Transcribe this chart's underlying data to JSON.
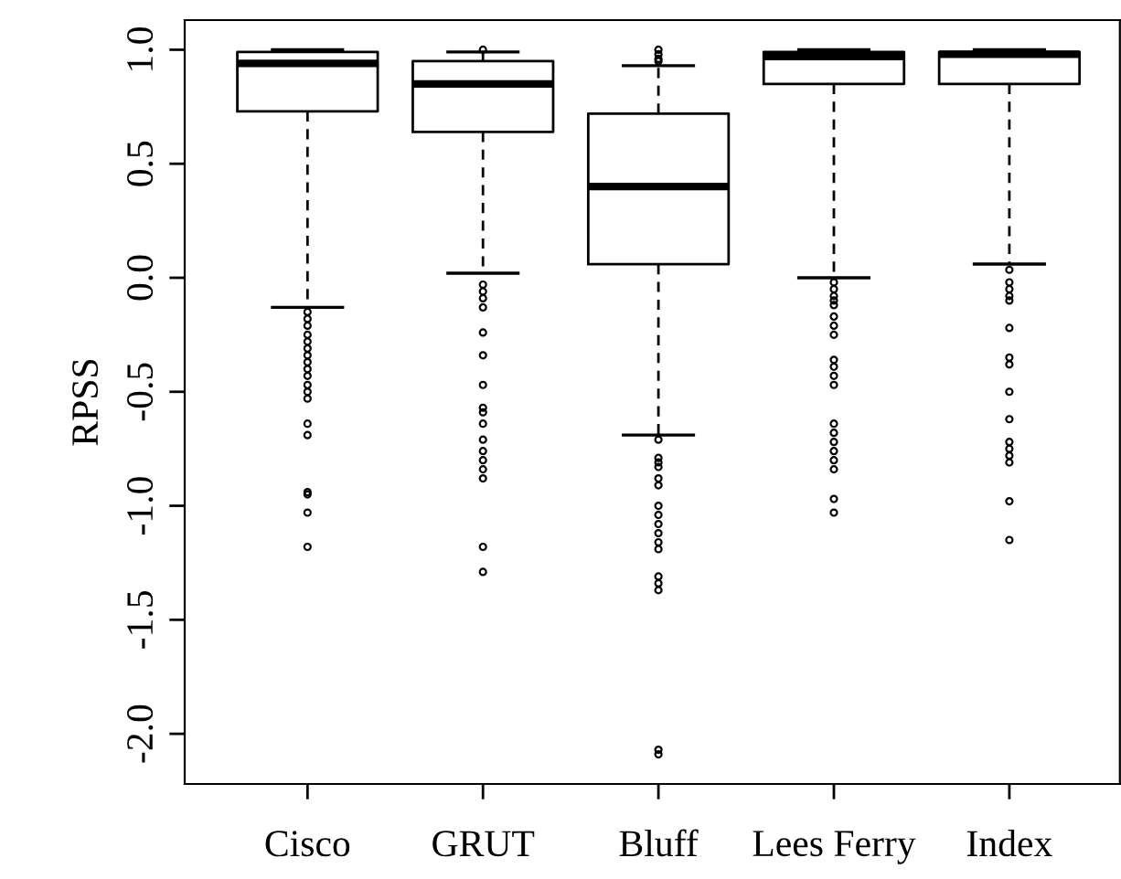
{
  "chart_data": {
    "type": "box",
    "ylabel": "RPSS",
    "categories": [
      "Cisco",
      "GRUT",
      "Bluff",
      "Lees Ferry",
      "Index"
    ],
    "ylim": [
      -2.22,
      1.13
    ],
    "yticks": [
      {
        "value": -2.0,
        "label": "-2.0"
      },
      {
        "value": -1.5,
        "label": "-1.5"
      },
      {
        "value": -1.0,
        "label": "-1.0"
      },
      {
        "value": -0.5,
        "label": "-0.5"
      },
      {
        "value": 0.0,
        "label": "0.0"
      },
      {
        "value": 0.5,
        "label": "0.5"
      },
      {
        "value": 1.0,
        "label": "1.0"
      }
    ],
    "grid": false,
    "marker": "circle",
    "boxes": [
      {
        "low": -0.13,
        "q1": 0.73,
        "median": 0.94,
        "q3": 0.99,
        "high": 1.0,
        "outliers": [
          -0.15,
          -0.18,
          -0.21,
          -0.25,
          -0.28,
          -0.31,
          -0.34,
          -0.37,
          -0.4,
          -0.43,
          -0.47,
          -0.5,
          -0.53,
          -0.64,
          -0.69,
          -0.94,
          -0.95,
          -1.03,
          -1.18
        ]
      },
      {
        "low": 0.02,
        "q1": 0.64,
        "median": 0.85,
        "q3": 0.95,
        "high": 0.99,
        "outliers": [
          1.0,
          -0.03,
          -0.06,
          -0.09,
          -0.13,
          -0.24,
          -0.34,
          -0.47,
          -0.57,
          -0.59,
          -0.64,
          -0.71,
          -0.76,
          -0.8,
          -0.84,
          -0.88,
          -1.18,
          -1.29
        ]
      },
      {
        "low": -0.69,
        "q1": 0.06,
        "median": 0.4,
        "q3": 0.72,
        "high": 0.93,
        "outliers": [
          1.0,
          0.98,
          0.96,
          0.95,
          -0.71,
          -0.79,
          -0.81,
          -0.83,
          -0.88,
          -0.91,
          -1.0,
          -1.04,
          -1.08,
          -1.12,
          -1.16,
          -1.19,
          -1.31,
          -1.34,
          -1.37,
          -2.07,
          -2.09
        ]
      },
      {
        "low": 0.0,
        "q1": 0.85,
        "median": 0.97,
        "q3": 0.99,
        "high": 1.0,
        "outliers": [
          -0.02,
          -0.05,
          -0.08,
          -0.1,
          -0.12,
          -0.17,
          -0.21,
          -0.25,
          -0.36,
          -0.39,
          -0.43,
          -0.47,
          -0.64,
          -0.68,
          -0.72,
          -0.76,
          -0.8,
          -0.84,
          -0.97,
          -1.03
        ]
      },
      {
        "low": 0.06,
        "q1": 0.85,
        "median": 0.98,
        "q3": 0.99,
        "high": 1.0,
        "outliers": [
          0.035,
          -0.02,
          -0.05,
          -0.08,
          -0.1,
          -0.22,
          -0.35,
          -0.38,
          -0.5,
          -0.62,
          -0.72,
          -0.75,
          -0.78,
          -0.81,
          -0.98,
          -1.15
        ]
      }
    ]
  }
}
